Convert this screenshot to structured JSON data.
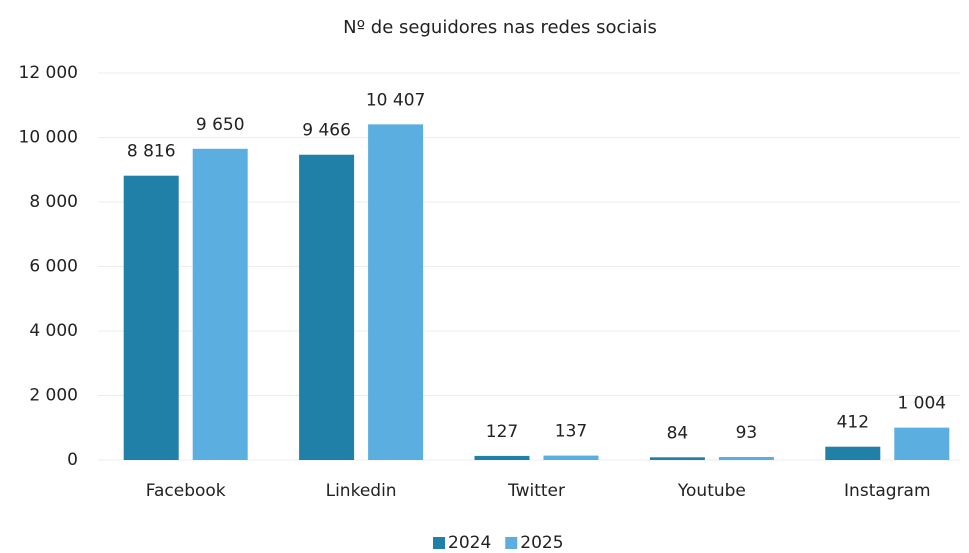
{
  "chart_data": {
    "type": "bar",
    "title": "Nº de seguidores nas redes sociais",
    "categories": [
      "Facebook",
      "Linkedin",
      "Twitter",
      "Youtube",
      "Instagram"
    ],
    "series": [
      {
        "name": "2024",
        "color": "#2180a8",
        "values": [
          8816,
          9466,
          127,
          84,
          412
        ],
        "value_labels": [
          "8 816",
          "9 466",
          "127",
          "84",
          "412"
        ]
      },
      {
        "name": "2025",
        "color": "#5aaee0",
        "values": [
          9650,
          10407,
          137,
          93,
          1004
        ],
        "value_labels": [
          "9 650",
          "10 407",
          "137",
          "93",
          "1 004"
        ]
      }
    ],
    "ylim": [
      0,
      12000
    ],
    "yticks": [
      0,
      {
        "value": 2000,
        "label": "2 000"
      },
      {
        "value": 4000,
        "label": "4 000"
      },
      {
        "value": 6000,
        "label": "6 000"
      },
      {
        "value": 8000,
        "label": "8 000"
      },
      {
        "value": 10000,
        "label": "10 000"
      },
      {
        "value": 12000,
        "label": "12 000"
      }
    ],
    "grid": true,
    "legend": "bottom"
  }
}
